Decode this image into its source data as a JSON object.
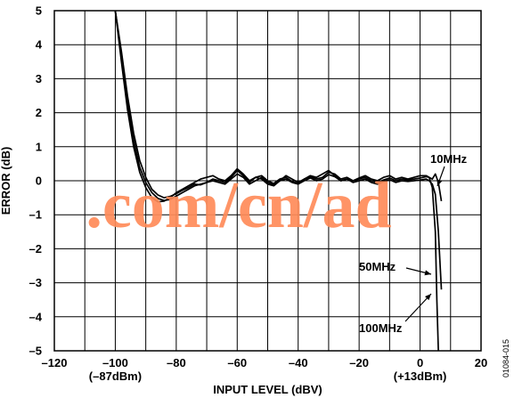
{
  "chart_data": {
    "type": "line",
    "xlabel": "INPUT LEVEL (dBV)",
    "ylabel": "ERROR (dB)",
    "xlim": [
      -120,
      20
    ],
    "ylim": [
      -5,
      5
    ],
    "grid": true,
    "x_ticks": [
      -120,
      -100,
      -80,
      -60,
      -40,
      -20,
      0,
      20
    ],
    "x_tick_labels": [
      "–120",
      "–100",
      "–80",
      "–60",
      "–40",
      "–20",
      "0",
      "20"
    ],
    "y_ticks": [
      5,
      4,
      3,
      2,
      1,
      0,
      -1,
      -2,
      -3,
      -4,
      -5
    ],
    "y_tick_labels": [
      "5",
      "4",
      "3",
      "2",
      "1",
      "0",
      "–1",
      "–2",
      "–3",
      "–4",
      "–5"
    ],
    "x_sublabels": [
      {
        "x": -100,
        "text": "(–87dBm)"
      },
      {
        "x": 0,
        "text": "(+13dBm)"
      }
    ],
    "series": [
      {
        "name": "10MHz",
        "x": [
          -100,
          -98,
          -96,
          -94,
          -92,
          -90,
          -88,
          -86,
          -84,
          -82,
          -80,
          -78,
          -76,
          -74,
          -72,
          -70,
          -68,
          -66,
          -64,
          -62,
          -60,
          -58,
          -56,
          -54,
          -52,
          -50,
          -48,
          -46,
          -44,
          -42,
          -40,
          -38,
          -36,
          -34,
          -32,
          -30,
          -28,
          -26,
          -24,
          -22,
          -20,
          -18,
          -16,
          -14,
          -12,
          -10,
          -8,
          -6,
          -4,
          -2,
          0,
          2,
          3,
          4,
          5,
          6,
          7
        ],
        "y": [
          5.0,
          3.8,
          2.5,
          1.4,
          0.6,
          0.1,
          -0.25,
          -0.42,
          -0.5,
          -0.46,
          -0.38,
          -0.28,
          -0.2,
          -0.1,
          -0.12,
          -0.05,
          0.05,
          0.0,
          -0.05,
          0.1,
          0.3,
          0.15,
          -0.05,
          0.1,
          0.15,
          0.0,
          -0.08,
          0.05,
          0.1,
          -0.02,
          -0.08,
          0.05,
          0.12,
          0.05,
          0.1,
          0.25,
          0.2,
          0.05,
          0.1,
          0.0,
          0.05,
          0.1,
          0.0,
          -0.05,
          0.02,
          0.08,
          0.0,
          0.05,
          0.02,
          0.05,
          0.08,
          0.12,
          0.1,
          0.05,
          0.2,
          -0.05,
          -0.6
        ]
      },
      {
        "name": "50MHz",
        "x": [
          -100,
          -98,
          -96,
          -94,
          -92,
          -90,
          -88,
          -86,
          -84,
          -82,
          -80,
          -78,
          -76,
          -74,
          -72,
          -70,
          -68,
          -66,
          -64,
          -62,
          -60,
          -58,
          -56,
          -54,
          -52,
          -50,
          -48,
          -46,
          -44,
          -42,
          -40,
          -38,
          -36,
          -34,
          -32,
          -30,
          -28,
          -26,
          -24,
          -22,
          -20,
          -18,
          -16,
          -14,
          -12,
          -10,
          -8,
          -6,
          -4,
          -2,
          0,
          2,
          3,
          4,
          5,
          6,
          7
        ],
        "y": [
          5.0,
          3.7,
          2.3,
          1.2,
          0.4,
          -0.05,
          -0.35,
          -0.52,
          -0.58,
          -0.55,
          -0.45,
          -0.35,
          -0.25,
          -0.15,
          -0.1,
          -0.05,
          0.0,
          -0.05,
          -0.1,
          0.05,
          0.2,
          0.1,
          -0.1,
          0.0,
          0.1,
          -0.05,
          -0.12,
          0.0,
          0.05,
          -0.05,
          -0.1,
          0.0,
          0.08,
          0.0,
          0.05,
          0.18,
          0.12,
          0.0,
          0.05,
          -0.05,
          0.0,
          0.05,
          -0.05,
          -0.1,
          -0.02,
          0.03,
          -0.05,
          0.0,
          -0.02,
          0.0,
          0.02,
          0.05,
          0.0,
          -0.1,
          -0.4,
          -1.5,
          -3.2
        ]
      },
      {
        "name": "100MHz",
        "x": [
          -100,
          -98,
          -96,
          -94,
          -92,
          -90,
          -88,
          -86,
          -84,
          -82,
          -80,
          -78,
          -76,
          -74,
          -72,
          -70,
          -68,
          -66,
          -64,
          -62,
          -60,
          -58,
          -56,
          -54,
          -52,
          -50,
          -48,
          -46,
          -44,
          -42,
          -40,
          -38,
          -36,
          -34,
          -32,
          -30,
          -28,
          -26,
          -24,
          -22,
          -20,
          -18,
          -16,
          -14,
          -12,
          -10,
          -8,
          -6,
          -4,
          -2,
          0,
          2,
          3,
          4,
          5,
          5.5,
          6
        ],
        "y": [
          5.0,
          3.5,
          2.1,
          1.0,
          0.25,
          -0.2,
          -0.5,
          -0.62,
          -0.6,
          -0.5,
          -0.35,
          -0.25,
          -0.15,
          -0.05,
          0.05,
          0.1,
          0.15,
          0.05,
          0.0,
          0.15,
          0.35,
          0.2,
          0.0,
          0.1,
          0.05,
          -0.1,
          -0.15,
          0.0,
          0.15,
          0.05,
          -0.05,
          0.05,
          0.15,
          0.1,
          0.2,
          0.3,
          0.15,
          0.0,
          0.05,
          0.0,
          0.08,
          0.15,
          0.05,
          0.0,
          0.1,
          0.15,
          0.05,
          0.1,
          0.05,
          0.1,
          0.15,
          0.15,
          0.1,
          -0.2,
          -1.5,
          -3.5,
          -5.0
        ]
      }
    ],
    "annotations": [
      {
        "text": "10MHz",
        "series": "10MHz"
      },
      {
        "text": "50MHz",
        "series": "50MHz"
      },
      {
        "text": "100MHz",
        "series": "100MHz"
      }
    ],
    "watermark": ".com/cn/ad",
    "figure_id": "01084-015"
  }
}
